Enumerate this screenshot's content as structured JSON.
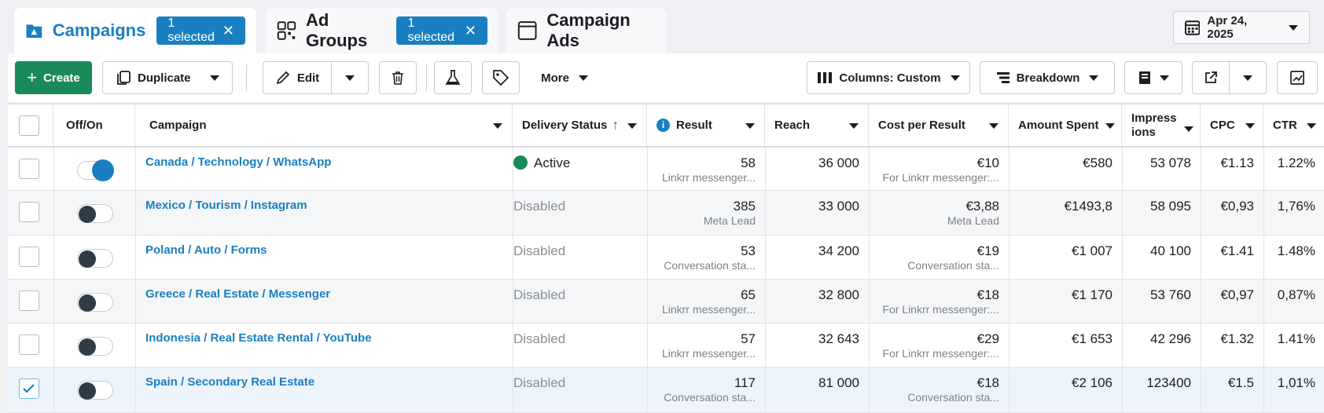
{
  "tabs": {
    "campaigns": {
      "label": "Campaigns",
      "selected": "1 selected"
    },
    "ad_groups": {
      "label": "Ad Groups",
      "selected": "1 selected"
    },
    "campaign_ads": {
      "label": "Campaign Ads"
    }
  },
  "date": "Apr 24, 2025",
  "toolbar": {
    "create": "Create",
    "duplicate": "Duplicate",
    "edit": "Edit",
    "more": "More",
    "columns": "Columns: Custom",
    "breakdown": "Breakdown"
  },
  "columns": {
    "onoff": "Off/On",
    "campaign": "Campaign",
    "delivery": "Delivery Status",
    "result": "Result",
    "reach": "Reach",
    "cpr": "Cost per Result",
    "spent": "Amount Spent",
    "impressions_1": "Impress",
    "impressions_2": "ions",
    "cpc": "CPC",
    "ctr": "CTR"
  },
  "rows": [
    {
      "selected": false,
      "on": true,
      "campaign": "Canada / Technology / WhatsApp",
      "status": "Active",
      "result": "58",
      "result_sub": "Linkrr messenger...",
      "reach": "36 000",
      "cpr": "€10",
      "cpr_sub": "For Linkrr messenger:...",
      "spent": "€580",
      "impressions": "53 078",
      "cpc": "€1.13",
      "ctr": "1.22%"
    },
    {
      "selected": false,
      "on": false,
      "campaign": "Mexico / Tourism / Instagram",
      "status": "Disabled",
      "result": "385",
      "result_sub": "Meta Lead",
      "reach": "33 000",
      "cpr": "€3,88",
      "cpr_sub": "Meta Lead",
      "spent": "€1493,8",
      "impressions": "58 095",
      "cpc": "€0,93",
      "ctr": "1,76%"
    },
    {
      "selected": false,
      "on": false,
      "campaign": "Poland / Auto / Forms",
      "status": "Disabled",
      "result": "53",
      "result_sub": "Conversation sta...",
      "reach": "34 200",
      "cpr": "€19",
      "cpr_sub": "Conversation sta...",
      "spent": "€1 007",
      "impressions": "40 100",
      "cpc": "€1.41",
      "ctr": "1.48%"
    },
    {
      "selected": false,
      "on": false,
      "campaign": "Greece / Real Estate / Messenger",
      "status": "Disabled",
      "result": "65",
      "result_sub": "Linkrr messenger...",
      "reach": "32 800",
      "cpr": "€18",
      "cpr_sub": "For Linkrr messenger:...",
      "spent": "€1 170",
      "impressions": "53 760",
      "cpc": "€0,97",
      "ctr": "0,87%"
    },
    {
      "selected": false,
      "on": false,
      "campaign": "Indonesia / Real Estate Rental / YouTube",
      "status": "Disabled",
      "result": "57",
      "result_sub": "Linkrr messenger...",
      "reach": "32 643",
      "cpr": "€29",
      "cpr_sub": "For Linkrr messenger:...",
      "spent": "€1 653",
      "impressions": "42 296",
      "cpc": "€1.32",
      "ctr": "1.41%"
    },
    {
      "selected": true,
      "on": false,
      "campaign": "Spain / Secondary Real Estate",
      "status": "Disabled",
      "result": "117",
      "result_sub": "Conversation sta...",
      "reach": "81 000",
      "cpr": "€18",
      "cpr_sub": "Conversation sta...",
      "spent": "€2 106",
      "impressions": "123400",
      "cpc": "€1.5",
      "ctr": "1,01%"
    }
  ],
  "colors": {
    "accent": "#1a7fc1",
    "create_green": "#1b8a5a"
  }
}
